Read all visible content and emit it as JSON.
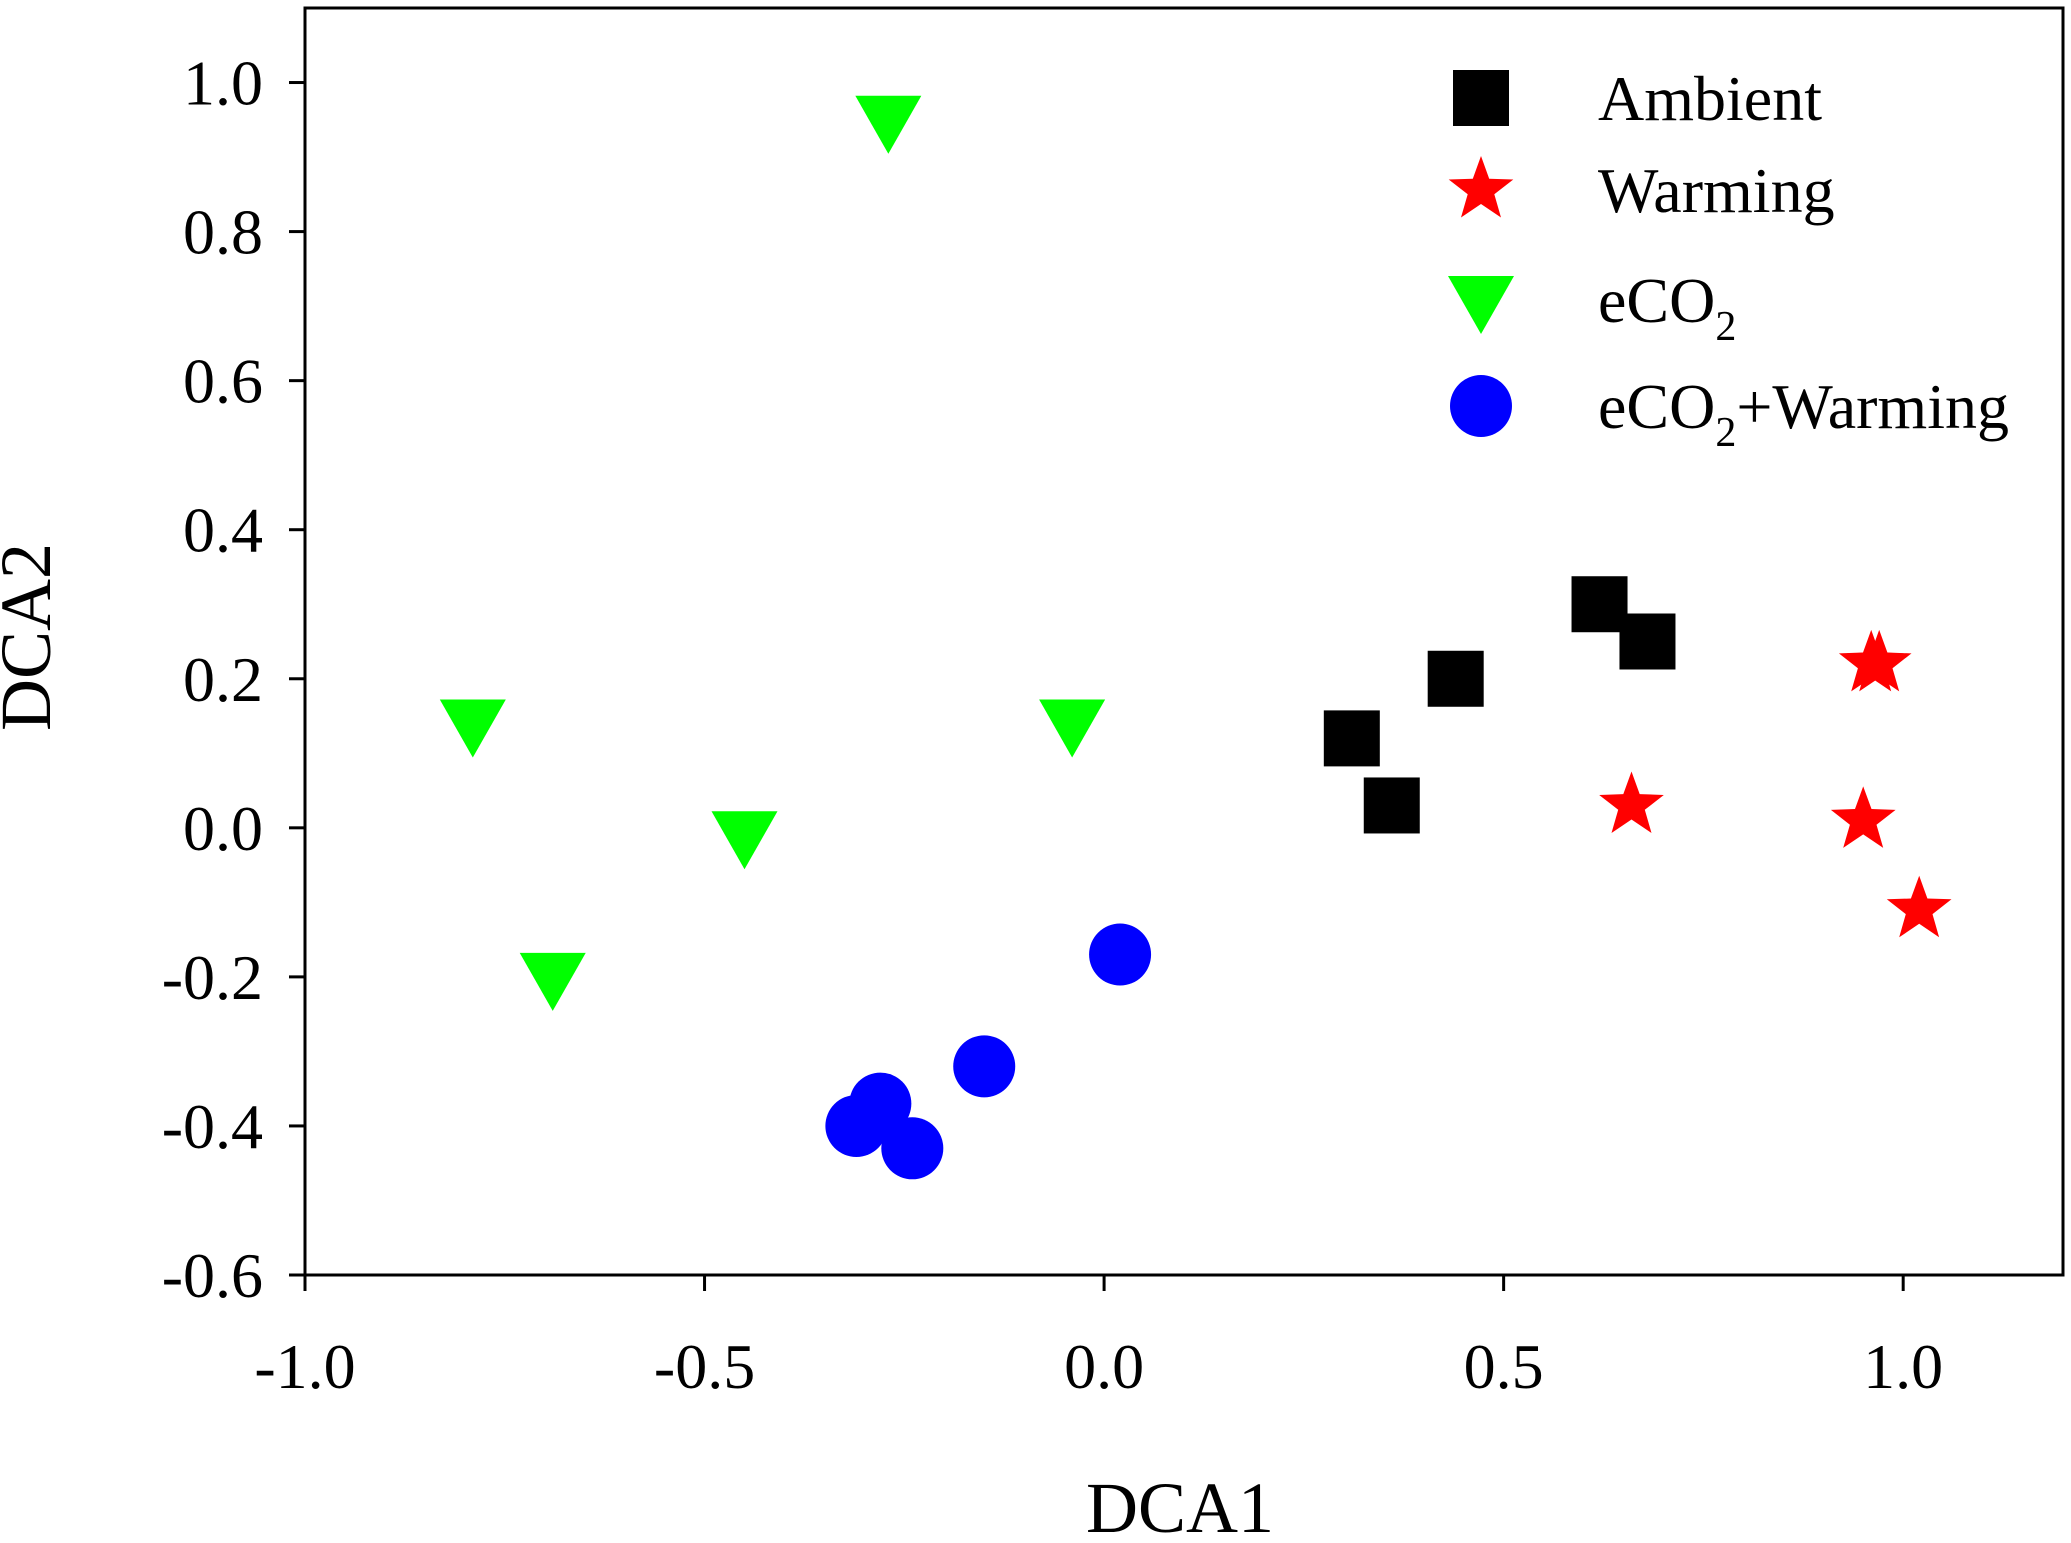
{
  "chart_data": {
    "type": "scatter",
    "title": "",
    "xlabel": "DCA1",
    "ylabel": "DCA2",
    "xlim": [
      -1.0,
      1.2
    ],
    "ylim": [
      -0.6,
      1.1
    ],
    "xticks": [
      -1.0,
      -0.5,
      0.0,
      0.5,
      1.0
    ],
    "xtick_labels": [
      "-1.0",
      "-0.5",
      "0.0",
      "0.5",
      "1.0"
    ],
    "yticks": [
      -0.6,
      -0.4,
      -0.2,
      0.0,
      0.2,
      0.4,
      0.6,
      0.8,
      1.0
    ],
    "ytick_labels": [
      "-0.6",
      "-0.4",
      "-0.2",
      "0.0",
      "0.2",
      "0.4",
      "0.6",
      "0.8",
      "1.0"
    ],
    "grid": false,
    "legend_position": "top-right",
    "series": [
      {
        "name": "Ambient",
        "label_main": "Ambient",
        "label_sub": "",
        "label_tail": "",
        "marker": "square",
        "color": "#000000",
        "x": [
          0.31,
          0.36,
          0.44,
          0.62,
          0.68
        ],
        "y": [
          0.12,
          0.03,
          0.2,
          0.3,
          0.25
        ]
      },
      {
        "name": "Warming",
        "label_main": "Warming",
        "label_sub": "",
        "label_tail": "",
        "marker": "star",
        "color": "#ff0000",
        "x": [
          0.66,
          0.95,
          0.96,
          0.97,
          1.02
        ],
        "y": [
          0.03,
          0.01,
          0.22,
          0.22,
          -0.11
        ]
      },
      {
        "name": "eCO2",
        "label_main": "eCO",
        "label_sub": "2",
        "label_tail": "",
        "marker": "triangle-down",
        "color": "#00ff00",
        "x": [
          -0.27,
          -0.79,
          -0.69,
          -0.45,
          -0.04
        ],
        "y": [
          0.95,
          0.14,
          -0.2,
          -0.01,
          0.14
        ]
      },
      {
        "name": "eCO2+Warming",
        "label_main": "eCO",
        "label_sub": "2",
        "label_tail": "+Warming",
        "marker": "circle",
        "color": "#0000ff",
        "x": [
          0.02,
          -0.15,
          -0.28,
          -0.31,
          -0.24
        ],
        "y": [
          -0.17,
          -0.32,
          -0.37,
          -0.4,
          -0.43
        ]
      }
    ]
  }
}
